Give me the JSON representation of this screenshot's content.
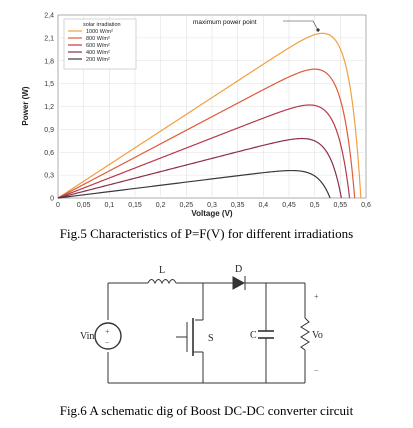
{
  "chart_data": {
    "type": "line",
    "xlabel": "Voltage (V)",
    "ylabel": "Power (W)",
    "xlim": [
      0,
      0.6
    ],
    "ylim": [
      0,
      2.4
    ],
    "x_ticks": [
      "0",
      "0,05",
      "0,1",
      "0,15",
      "0,2",
      "0,25",
      "0,3",
      "0,35",
      "0,4",
      "0,45",
      "0,5",
      "0,55",
      "0,6"
    ],
    "y_ticks": [
      "0",
      "0,3",
      "0,6",
      "0,9",
      "1,2",
      "1,5",
      "1,8",
      "2,1",
      "2,4"
    ],
    "grid": true,
    "legend_title": "solar irradiation",
    "legend_position": "top-left",
    "annotation": "maximum power point",
    "series": [
      {
        "name": "1000 W/m²",
        "color": "#f0a040",
        "voc": 0.59,
        "vmp": 0.515,
        "pmp": 2.16
      },
      {
        "name": "800 W/m²",
        "color": "#e05a3a",
        "voc": 0.578,
        "vmp": 0.5,
        "pmp": 1.69
      },
      {
        "name": "600 W/m²",
        "color": "#b83a4a",
        "voc": 0.568,
        "vmp": 0.49,
        "pmp": 1.22
      },
      {
        "name": "400 W/m²",
        "color": "#8a3048",
        "voc": 0.552,
        "vmp": 0.475,
        "pmp": 0.78
      },
      {
        "name": "200 W/m²",
        "color": "#3a3a3e",
        "voc": 0.53,
        "vmp": 0.455,
        "pmp": 0.36
      }
    ]
  },
  "captions": {
    "fig5": "Fig.5 Characteristics of P=F(V) for different irradiations",
    "fig6": "Fig.6 A schematic dig of Boost DC-DC converter circuit"
  },
  "circuit": {
    "inductor": "L",
    "diode": "D",
    "switch": "S",
    "capacitor": "C",
    "input": "Vin",
    "output": "Vo",
    "plus": "+",
    "minus": "−"
  }
}
